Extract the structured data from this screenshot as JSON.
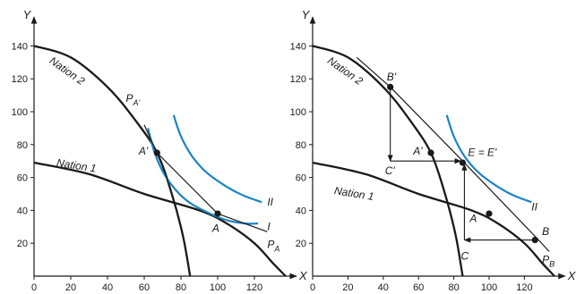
{
  "chart_data": [
    {
      "type": "line",
      "xlabel": "X",
      "ylabel": "Y",
      "xlim": [
        0,
        140
      ],
      "ylim": [
        0,
        150
      ],
      "x_ticks": [
        "0",
        "20",
        "40",
        "60",
        "80",
        "100",
        "120"
      ],
      "y_ticks": [
        "20",
        "40",
        "60",
        "80",
        "100",
        "120",
        "140"
      ],
      "colors": {
        "frontier": "#1a1a1a",
        "indifference": "#1b84c4"
      },
      "series": [
        {
          "name": "Nation 2",
          "kind": "ppf",
          "x": [
            0,
            20,
            40,
            55,
            67,
            75,
            81,
            85
          ],
          "y": [
            140,
            133,
            115,
            95,
            75,
            50,
            25,
            0
          ]
        },
        {
          "name": "Nation 1",
          "kind": "ppf",
          "x": [
            0,
            30,
            60,
            90,
            105,
            120,
            130,
            137
          ],
          "y": [
            69,
            62,
            50,
            40,
            32,
            20,
            8,
            0
          ]
        },
        {
          "name": "I",
          "kind": "indifference",
          "x": [
            62,
            66,
            72,
            82,
            94,
            105,
            115,
            122
          ],
          "y": [
            90,
            74,
            60,
            47,
            39,
            34,
            32,
            32
          ]
        },
        {
          "name": "II",
          "kind": "indifference",
          "x": [
            76,
            80,
            86,
            94,
            104,
            114,
            124
          ],
          "y": [
            98,
            85,
            73,
            63,
            55,
            49,
            45
          ]
        },
        {
          "name": "P_A",
          "kind": "price-line",
          "x": [
            67,
            100,
            127
          ],
          "y": [
            75,
            38,
            27
          ]
        },
        {
          "name": "P_A'",
          "kind": "price-line",
          "x": [
            60,
            67,
            73
          ],
          "y": [
            92,
            75,
            58
          ]
        }
      ],
      "points": [
        {
          "label": "A",
          "x": 100,
          "y": 38
        },
        {
          "label": "A'",
          "x": 67,
          "y": 75
        }
      ],
      "labels": [
        {
          "text": "Nation 2",
          "x": 8,
          "y": 130,
          "rotate": 35
        },
        {
          "text": "Nation 1",
          "x": 12,
          "y": 67,
          "rotate": 9
        },
        {
          "text": "II",
          "x": 127,
          "y": 43
        },
        {
          "text": "I",
          "x": 127,
          "y": 28
        },
        {
          "text": "A",
          "x": 97,
          "y": 27
        },
        {
          "text": "A'",
          "x": 57,
          "y": 74
        },
        {
          "text": "P",
          "sub": "A",
          "x": 127,
          "y": 17
        },
        {
          "text": "P",
          "sub": "A'",
          "x": 50,
          "y": 106
        }
      ]
    },
    {
      "type": "line",
      "xlabel": "X",
      "ylabel": "Y",
      "xlim": [
        0,
        140
      ],
      "ylim": [
        0,
        150
      ],
      "x_ticks": [
        "0",
        "20",
        "40",
        "60",
        "80",
        "100",
        "120"
      ],
      "y_ticks": [
        "20",
        "40",
        "60",
        "80",
        "100",
        "120",
        "140"
      ],
      "colors": {
        "frontier": "#1a1a1a",
        "indifference": "#1b84c4"
      },
      "series": [
        {
          "name": "Nation 2",
          "kind": "ppf",
          "x": [
            0,
            20,
            40,
            55,
            67,
            75,
            81,
            85
          ],
          "y": [
            140,
            133,
            115,
            95,
            75,
            50,
            25,
            0
          ]
        },
        {
          "name": "Nation 1",
          "kind": "ppf",
          "x": [
            0,
            30,
            60,
            90,
            105,
            120,
            130,
            137
          ],
          "y": [
            69,
            62,
            50,
            40,
            32,
            20,
            8,
            0
          ]
        },
        {
          "name": "II",
          "kind": "indifference",
          "x": [
            76,
            80,
            86,
            94,
            104,
            114,
            124
          ],
          "y": [
            98,
            85,
            73,
            63,
            55,
            49,
            45
          ]
        },
        {
          "name": "P_B",
          "kind": "price-line",
          "x": [
            25,
            44,
            85,
            128,
            134
          ],
          "y": [
            133,
            115,
            70,
            22,
            15
          ]
        }
      ],
      "points": [
        {
          "label": "B'",
          "x": 44,
          "y": 115
        },
        {
          "label": "E = E'",
          "x": 85,
          "y": 69
        },
        {
          "label": "B",
          "x": 126,
          "y": 22
        },
        {
          "label": "A",
          "x": 100,
          "y": 38
        },
        {
          "label": "A'",
          "x": 67,
          "y": 75
        }
      ],
      "arrows": [
        {
          "from": [
            44,
            115
          ],
          "to": [
            44,
            70
          ]
        },
        {
          "from": [
            44,
            70
          ],
          "to": [
            84,
            70
          ]
        },
        {
          "from": [
            126,
            22
          ],
          "to": [
            86,
            22
          ]
        },
        {
          "from": [
            86,
            22
          ],
          "to": [
            86,
            68
          ]
        }
      ],
      "labels": [
        {
          "text": "Nation 2",
          "x": 8,
          "y": 130,
          "rotate": 35
        },
        {
          "text": "Nation 1",
          "x": 12,
          "y": 50,
          "rotate": 9
        },
        {
          "text": "B'",
          "x": 42,
          "y": 119
        },
        {
          "text": "A'",
          "x": 57,
          "y": 74
        },
        {
          "text": "E = E'",
          "x": 88,
          "y": 73
        },
        {
          "text": "C'",
          "x": 41,
          "y": 62
        },
        {
          "text": "A",
          "x": 89,
          "y": 33
        },
        {
          "text": "B",
          "x": 130,
          "y": 25
        },
        {
          "text": "C",
          "x": 84,
          "y": 10
        },
        {
          "text": "II",
          "x": 124,
          "y": 40
        },
        {
          "text": "P",
          "sub": "B",
          "x": 130,
          "y": 8
        }
      ]
    }
  ]
}
